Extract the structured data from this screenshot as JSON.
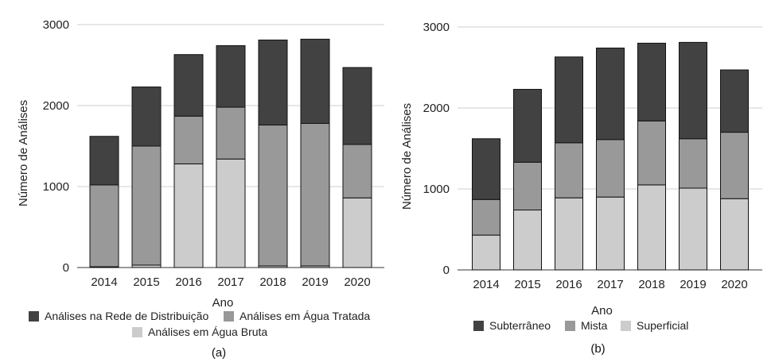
{
  "chart_data": [
    {
      "type": "bar",
      "stacked": true,
      "panel_label": "(a)",
      "xlabel": "Ano",
      "ylabel": "Número de Análises",
      "categories": [
        "2014",
        "2015",
        "2016",
        "2017",
        "2018",
        "2019",
        "2020"
      ],
      "ylim": [
        0,
        3000
      ],
      "yticks": [
        "0",
        "1000",
        "2000",
        "3000"
      ],
      "grid": true,
      "legend_position": "bottom",
      "series": [
        {
          "name": "Análises em Água Bruta",
          "color": "#cccccc",
          "values": [
            10,
            30,
            1280,
            1340,
            20,
            20,
            860
          ]
        },
        {
          "name": "Análises em Água Tratada",
          "color": "#999999",
          "values": [
            1010,
            1470,
            590,
            640,
            1740,
            1760,
            660
          ]
        },
        {
          "name": "Análises na Rede de Distribuição",
          "color": "#424242",
          "values": [
            600,
            730,
            760,
            760,
            1050,
            1040,
            950
          ]
        }
      ],
      "legend_order": [
        2,
        1,
        0
      ]
    },
    {
      "type": "bar",
      "stacked": true,
      "panel_label": "(b)",
      "xlabel": "Ano",
      "ylabel": "Número de Análises",
      "categories": [
        "2014",
        "2015",
        "2016",
        "2017",
        "2018",
        "2019",
        "2020"
      ],
      "ylim": [
        0,
        3000
      ],
      "yticks": [
        "0",
        "1000",
        "2000",
        "3000"
      ],
      "grid": true,
      "legend_position": "bottom",
      "series": [
        {
          "name": "Superficial",
          "color": "#cccccc",
          "values": [
            430,
            740,
            890,
            900,
            1050,
            1010,
            880
          ]
        },
        {
          "name": "Mista",
          "color": "#999999",
          "values": [
            440,
            590,
            680,
            710,
            790,
            610,
            820
          ]
        },
        {
          "name": "Subterrâneo",
          "color": "#424242",
          "values": [
            750,
            900,
            1060,
            1130,
            960,
            1190,
            770
          ]
        }
      ],
      "legend_order": [
        2,
        1,
        0
      ]
    }
  ]
}
